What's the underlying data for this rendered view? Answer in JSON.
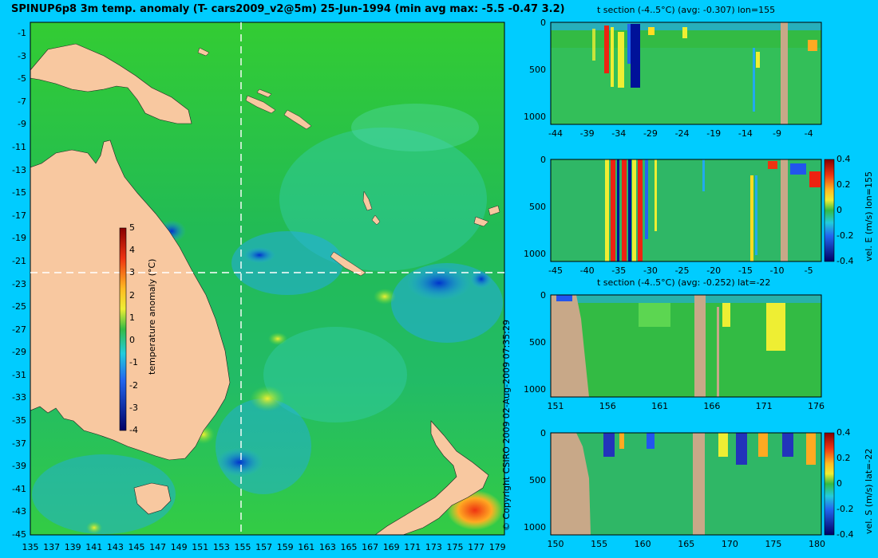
{
  "title": "SPINUP6p8 3m temp. anomaly (T- cars2009_v2@5m) 25-Jun-1994 (min avg max: -5.5 -0.47 3.2)",
  "copyright": "© Copyright CSIRO 2009   02-Aug-2009 07:35:29",
  "colors": {
    "background": "#00ccff",
    "land": "#f8c8a0",
    "section_land": "#c8a888",
    "ocean": "#22bb44"
  },
  "map": {
    "lat_ticks": [
      "-1",
      "-3",
      "-5",
      "-7",
      "-9",
      "-11",
      "-13",
      "-15",
      "-17",
      "-19",
      "-21",
      "-23",
      "-25",
      "-27",
      "-29",
      "-31",
      "-33",
      "-35",
      "-37",
      "-39",
      "-41",
      "-43",
      "-45"
    ],
    "lon_ticks": [
      "135",
      "137",
      "139",
      "141",
      "143",
      "145",
      "147",
      "149",
      "151",
      "153",
      "155",
      "157",
      "159",
      "161",
      "163",
      "165",
      "167",
      "169",
      "171",
      "173",
      "175",
      "177",
      "179"
    ],
    "colorbar": {
      "label": "temperature anomaly (°C)",
      "ticks": [
        "5",
        "4",
        "3",
        "2",
        "1",
        "0",
        "-1",
        "-2",
        "-3",
        "-4"
      ]
    }
  },
  "panels": [
    {
      "title": "t section (-4..5°C) (avg: -0.307) lon=155",
      "y_ticks": [
        "0",
        "500",
        "1000"
      ],
      "x_ticks": [
        "-44",
        "-39",
        "-34",
        "-29",
        "-24",
        "-19",
        "-14",
        "-9",
        "-4"
      ]
    },
    {
      "title": "",
      "y_ticks": [
        "0",
        "500",
        "1000"
      ],
      "x_ticks": [
        "-45",
        "-40",
        "-35",
        "-30",
        "-25",
        "-20",
        "-15",
        "-10",
        "-5"
      ],
      "colorbar_label": "vel. E (m/s) lon=155",
      "colorbar_ticks": [
        "0.4",
        "0.2",
        "0",
        "-0.2",
        "-0.4"
      ]
    },
    {
      "title": "t section (-4..5°C) (avg: -0.252) lat=-22",
      "y_ticks": [
        "0",
        "500",
        "1000"
      ],
      "x_ticks": [
        "151",
        "156",
        "161",
        "166",
        "171",
        "176"
      ]
    },
    {
      "title": "",
      "y_ticks": [
        "0",
        "500",
        "1000"
      ],
      "x_ticks": [
        "150",
        "155",
        "160",
        "165",
        "170",
        "175",
        "180"
      ],
      "colorbar_label": "vel. S (m/s) lat=-22",
      "colorbar_ticks": [
        "0.4",
        "0.2",
        "0",
        "-0.2",
        "-0.4"
      ]
    }
  ]
}
